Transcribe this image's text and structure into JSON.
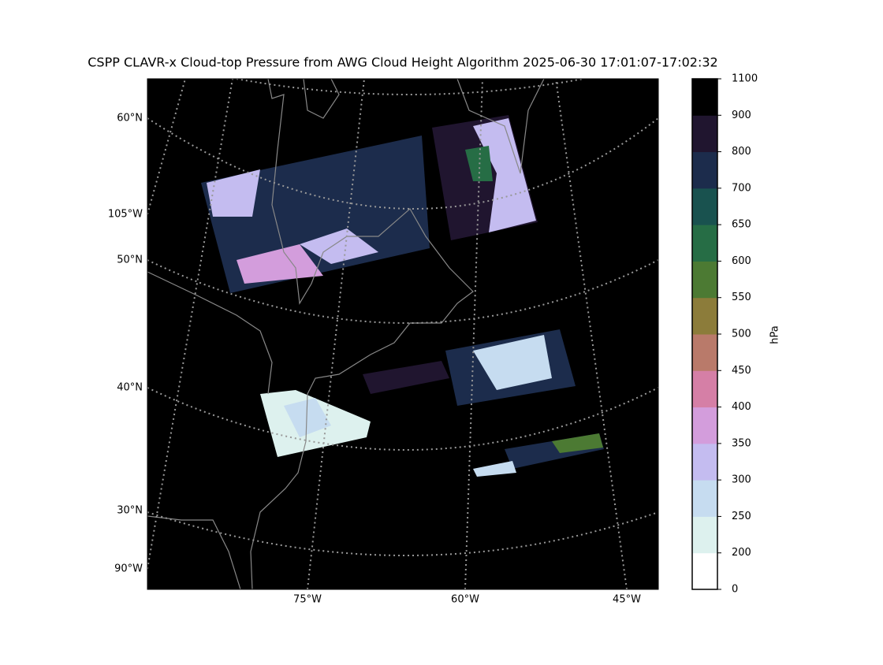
{
  "map": {
    "title": "CSPP CLAVR-x Cloud-top Pressure from AWG Cloud Height Algorithm 2025-06-30 17:01:07-17:02:32",
    "lat_labels": [
      "60°N",
      "50°N",
      "40°N",
      "30°N"
    ],
    "lon_labels_left": [
      "105°W",
      "90°W"
    ],
    "lon_labels_bottom": [
      "75°W",
      "60°W",
      "45°W"
    ]
  },
  "colorbar": {
    "label": "hPa",
    "boundaries": [
      0,
      200,
      250,
      300,
      350,
      400,
      450,
      500,
      550,
      600,
      650,
      700,
      800,
      900,
      1100
    ],
    "colors": [
      "#ffffff",
      "#ddf1ee",
      "#c6dcf0",
      "#c4bcf0",
      "#d39ddc",
      "#d57fa6",
      "#b97a6a",
      "#8c7c3a",
      "#4c7a33",
      "#266d45",
      "#19524f",
      "#1c2c4c",
      "#20152f",
      "#000000"
    ]
  }
}
